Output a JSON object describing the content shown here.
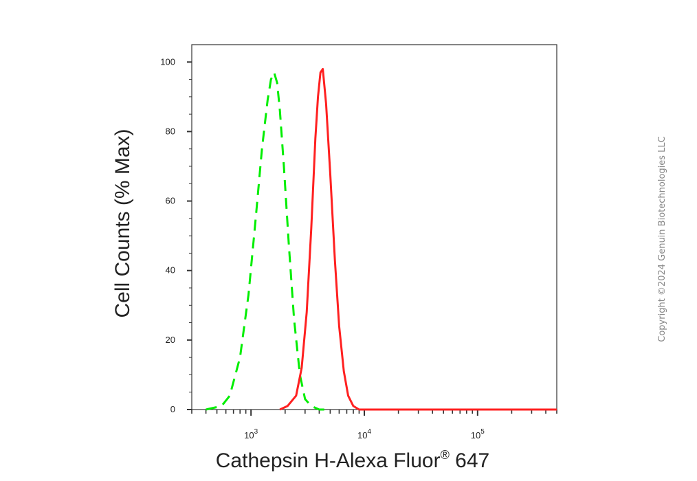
{
  "chart_data": {
    "type": "line",
    "xlabel": "Cathepsin H-Alexa Fluor",
    "xlabel_superscript": "®",
    "xlabel_suffix": " 647",
    "ylabel": "Cell Counts (% Max)",
    "x_scale": "log",
    "xlim": [
      300,
      500000
    ],
    "ylim": [
      0,
      105
    ],
    "y_ticks": [
      0,
      20,
      40,
      60,
      80,
      100
    ],
    "x_major_ticks": [
      {
        "value": 1000,
        "base": "10",
        "exp": "3"
      },
      {
        "value": 10000,
        "base": "10",
        "exp": "4"
      },
      {
        "value": 100000,
        "base": "10",
        "exp": "5"
      }
    ],
    "grid": false,
    "series": [
      {
        "color": "#00ee00",
        "style": "dashed",
        "x": [
          400,
          550,
          650,
          800,
          950,
          1100,
          1250,
          1400,
          1500,
          1600,
          1700,
          1800,
          1950,
          2150,
          2400,
          2700,
          3000,
          3400,
          4000,
          5000
        ],
        "y": [
          0,
          1,
          4,
          15,
          33,
          55,
          75,
          89,
          95,
          97,
          94,
          86,
          70,
          48,
          26,
          10,
          3,
          1,
          0,
          0
        ]
      },
      {
        "color": "#ff2020",
        "style": "solid",
        "x": [
          1800,
          2100,
          2500,
          2800,
          3100,
          3400,
          3700,
          3900,
          4100,
          4300,
          4600,
          5000,
          5500,
          6000,
          6600,
          7200,
          8000,
          9000,
          10000,
          20000,
          100000,
          500000
        ],
        "y": [
          0,
          1,
          4,
          12,
          28,
          52,
          78,
          90,
          97,
          98,
          88,
          68,
          43,
          24,
          11,
          4,
          1,
          0,
          0,
          0,
          0,
          0
        ]
      }
    ]
  },
  "copyright": "Copyright ©2024 Genuin Biotechnologies LLC"
}
